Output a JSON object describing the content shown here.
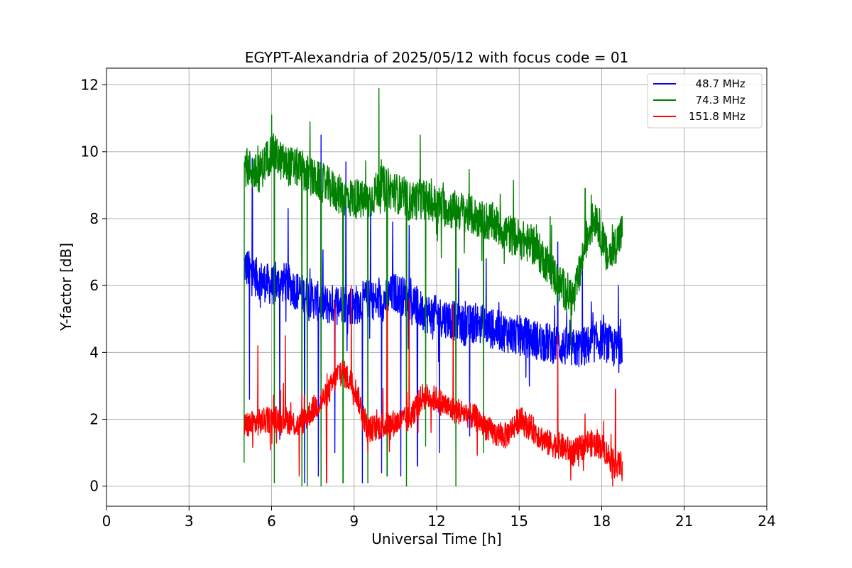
{
  "chart_data": {
    "type": "line",
    "title": "EGYPT-Alexandria of 2025/05/12 with focus code = 01",
    "xlabel": "Universal Time [h]",
    "ylabel": "Y-factor [dB]",
    "xlim": [
      0,
      24
    ],
    "ylim": [
      -0.6,
      12.5
    ],
    "xticks": [
      0,
      3,
      6,
      9,
      12,
      15,
      18,
      21,
      24
    ],
    "yticks": [
      0,
      2,
      4,
      6,
      8,
      10,
      12
    ],
    "grid": true,
    "legend_position": "top-right",
    "series": [
      {
        "name": "  48.7 MHz",
        "color": "#0000ff",
        "x": [
          5.0,
          5.5,
          6.0,
          6.5,
          7.0,
          7.5,
          8.0,
          8.5,
          9.0,
          9.5,
          10.0,
          10.5,
          11.0,
          11.5,
          12.0,
          12.5,
          13.0,
          13.5,
          14.0,
          14.5,
          15.0,
          15.5,
          16.0,
          16.5,
          17.0,
          17.5,
          18.0,
          18.5,
          18.75
        ],
        "y": [
          6.6,
          6.2,
          6.0,
          6.1,
          5.8,
          5.6,
          5.4,
          5.5,
          5.4,
          5.6,
          5.5,
          5.8,
          5.6,
          5.2,
          5.1,
          5.0,
          4.8,
          4.9,
          4.7,
          4.6,
          4.5,
          4.4,
          4.3,
          4.2,
          4.1,
          4.2,
          4.4,
          4.1,
          4.3
        ],
        "noise": 0.6,
        "spikes_high": [
          [
            5.3,
            9.8
          ],
          [
            6.6,
            8.3
          ],
          [
            7.2,
            8.1
          ],
          [
            7.8,
            10.5
          ],
          [
            8.7,
            9.7
          ],
          [
            9.6,
            8.5
          ],
          [
            10.4,
            7.9
          ],
          [
            11.0,
            7.8
          ],
          [
            12.8,
            6.5
          ],
          [
            13.8,
            6.8
          ],
          [
            16.4,
            7.3
          ],
          [
            17.3,
            7.1
          ],
          [
            18.6,
            6.0
          ]
        ],
        "spikes_low": [
          [
            5.2,
            2.6
          ],
          [
            6.3,
            1.4
          ],
          [
            7.2,
            0.1
          ],
          [
            7.7,
            0.3
          ],
          [
            8.3,
            1.0
          ],
          [
            9.3,
            0.1
          ],
          [
            10.0,
            0.4
          ],
          [
            10.7,
            0.3
          ],
          [
            11.3,
            0.6
          ],
          [
            12.1,
            1.0
          ],
          [
            13.2,
            1.5
          ]
        ]
      },
      {
        "name": "  74.3 MHz",
        "color": "#008000",
        "x": [
          5.0,
          5.5,
          6.0,
          6.5,
          7.0,
          7.5,
          8.0,
          8.5,
          9.0,
          9.5,
          10.0,
          10.5,
          11.0,
          11.5,
          12.0,
          12.5,
          13.0,
          13.5,
          14.0,
          14.5,
          15.0,
          15.5,
          16.0,
          16.5,
          17.0,
          17.5,
          17.8,
          18.2,
          18.75
        ],
        "y": [
          9.6,
          9.3,
          10.0,
          9.6,
          9.5,
          9.2,
          9.0,
          8.7,
          8.6,
          8.5,
          9.0,
          8.8,
          8.5,
          8.6,
          8.4,
          8.3,
          8.2,
          8.0,
          7.9,
          7.6,
          7.4,
          7.2,
          6.7,
          6.0,
          5.6,
          7.6,
          8.1,
          6.8,
          7.6
        ],
        "noise": 0.6,
        "spikes_high": [
          [
            6.0,
            11.1
          ],
          [
            7.4,
            10.9
          ],
          [
            9.9,
            11.9
          ],
          [
            10.2,
            11.3
          ],
          [
            11.4,
            10.5
          ],
          [
            17.4,
            8.9
          ]
        ],
        "spikes_low": [
          [
            5.0,
            0.7
          ],
          [
            6.1,
            0.1
          ],
          [
            7.1,
            0.0
          ],
          [
            7.3,
            0.0
          ],
          [
            7.8,
            0.0
          ],
          [
            8.6,
            0.1
          ],
          [
            9.5,
            0.1
          ],
          [
            10.2,
            0.3
          ],
          [
            10.9,
            0.0
          ],
          [
            11.6,
            1.2
          ],
          [
            12.7,
            0.0
          ],
          [
            13.7,
            1.0
          ]
        ]
      },
      {
        "name": "151.8 MHz",
        "color": "#ff0000",
        "x": [
          5.0,
          5.5,
          6.0,
          6.5,
          7.0,
          7.5,
          8.0,
          8.5,
          9.0,
          9.5,
          10.0,
          10.5,
          11.0,
          11.5,
          12.0,
          12.5,
          13.0,
          13.5,
          14.0,
          14.5,
          15.0,
          15.5,
          16.0,
          16.5,
          17.0,
          17.5,
          18.0,
          18.5,
          18.75
        ],
        "y": [
          1.8,
          1.9,
          2.0,
          2.0,
          1.8,
          2.3,
          2.7,
          3.5,
          3.0,
          1.7,
          1.8,
          1.9,
          2.0,
          2.7,
          2.6,
          2.3,
          2.2,
          2.0,
          1.6,
          1.5,
          2.0,
          1.7,
          1.3,
          1.2,
          1.0,
          1.3,
          1.2,
          0.6,
          0.7
        ],
        "noise": 0.4,
        "spikes_high": [
          [
            5.5,
            4.2
          ],
          [
            6.5,
            4.5
          ],
          [
            8.3,
            5.5
          ],
          [
            8.9,
            6.0
          ],
          [
            10.2,
            5.4
          ],
          [
            11.0,
            5.6
          ],
          [
            12.6,
            5.4
          ],
          [
            16.4,
            4.5
          ],
          [
            18.5,
            2.9
          ]
        ],
        "spikes_low": [
          [
            7.0,
            0.3
          ],
          [
            8.0,
            0.1
          ],
          [
            18.4,
            0.0
          ]
        ]
      }
    ]
  }
}
